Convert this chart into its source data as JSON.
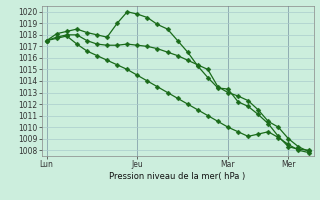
{
  "xlabel": "Pression niveau de la mer( hPa )",
  "bg_color": "#cceedd",
  "grid_color": "#aacccc",
  "line_color": "#1a6b1a",
  "dark_line_color": "#2d5a1e",
  "ylim": [
    1007.5,
    1020.5
  ],
  "yticks": [
    1008,
    1009,
    1010,
    1011,
    1012,
    1013,
    1014,
    1015,
    1016,
    1017,
    1018,
    1019,
    1020
  ],
  "xtick_labels": [
    "Lun",
    "Jeu",
    "Mar",
    "Mer"
  ],
  "xtick_positions": [
    0,
    9,
    18,
    24
  ],
  "vlines_x": [
    0,
    9,
    18,
    24
  ],
  "n_points": 27,
  "series1": [
    1017.5,
    1018.1,
    1018.3,
    1018.5,
    1018.2,
    1018.0,
    1017.8,
    1019.0,
    1020.0,
    1019.8,
    1019.5,
    1018.9,
    1018.5,
    1017.5,
    1016.5,
    1015.3,
    1014.3,
    1013.4,
    1013.3,
    1012.2,
    1011.8,
    1011.1,
    1010.3,
    1009.2,
    1008.3,
    1008.1,
    1008.0
  ],
  "series2": [
    1017.5,
    1017.8,
    1018.0,
    1018.0,
    1017.5,
    1017.2,
    1017.1,
    1017.1,
    1017.2,
    1017.1,
    1017.0,
    1016.8,
    1016.5,
    1016.2,
    1015.8,
    1015.4,
    1015.0,
    1013.5,
    1013.0,
    1012.7,
    1012.3,
    1011.5,
    1010.5,
    1010.0,
    1009.0,
    1008.3,
    1007.9
  ],
  "series3": [
    1017.5,
    1017.7,
    1017.9,
    1017.2,
    1016.6,
    1016.2,
    1015.8,
    1015.4,
    1015.0,
    1014.5,
    1014.0,
    1013.5,
    1013.0,
    1012.5,
    1012.0,
    1011.5,
    1011.0,
    1010.5,
    1010.0,
    1009.6,
    1009.2,
    1009.4,
    1009.6,
    1009.1,
    1008.5,
    1008.0,
    1007.8
  ]
}
